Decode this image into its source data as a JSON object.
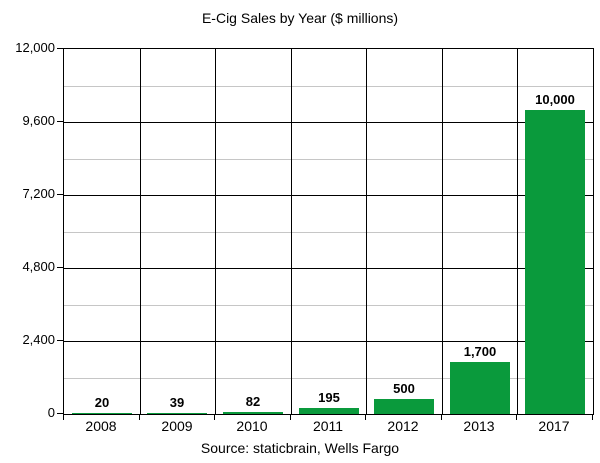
{
  "header": {
    "title": "E-Cig Sales by Year ($ millions)"
  },
  "footer": {
    "source": "Source: staticbrain, Wells Fargo"
  },
  "colors": {
    "bar": "#0a9a3c",
    "major_grid": "#000000",
    "minor_grid": "#c6c6c6",
    "axis": "#000000",
    "background": "#ffffff",
    "text": "#000000"
  },
  "chart_data": {
    "type": "bar",
    "title": "E-Cig Sales by Year ($ millions)",
    "xlabel": "",
    "ylabel": "",
    "categories": [
      "2008",
      "2009",
      "2010",
      "2011",
      "2012",
      "2013",
      "2017"
    ],
    "values": [
      20,
      39,
      82,
      195,
      500,
      1700,
      10000
    ],
    "value_labels": [
      "20",
      "39",
      "82",
      "195",
      "500",
      "1,700",
      "10,000"
    ],
    "ylim": [
      0,
      12000
    ],
    "y_major_step": 2400,
    "y_minor_step": 1200,
    "y_tick_labels": [
      "0",
      "2,400",
      "4,800",
      "7,200",
      "9,600",
      "12,000"
    ],
    "grid": "major black horizontal, minor light-gray horizontal, black vertical column separators",
    "legend": "none",
    "bar_color": "#0a9a3c",
    "source_note": "Source: staticbrain, Wells Fargo"
  }
}
